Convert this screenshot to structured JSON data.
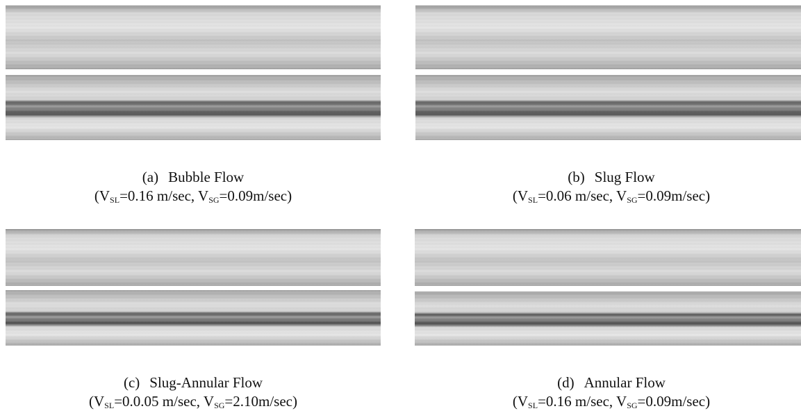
{
  "figure": {
    "panels": [
      {
        "label": "(a)",
        "title": "Bubble Flow",
        "caption_parts": [
          "(V",
          "SL",
          "=0.16 m/sec, V",
          "SG",
          "=0.09m/sec)"
        ]
      },
      {
        "label": "(b)",
        "title": "Slug Flow",
        "caption_parts": [
          "(V",
          "SL",
          "=0.06 m/sec, V",
          "SG",
          "=0.09m/sec)"
        ]
      },
      {
        "label": "(c)",
        "title": "Slug-Annular Flow",
        "caption_parts": [
          "(V",
          "SL",
          "=0.0.05 m/sec, V",
          "SG",
          "=2.10m/sec)"
        ]
      },
      {
        "label": "(d)",
        "title": "Annular Flow",
        "caption_parts": [
          "(V",
          "SL",
          "=0.16 m/sec, V",
          "SG",
          "=0.09m/sec)"
        ]
      }
    ]
  }
}
